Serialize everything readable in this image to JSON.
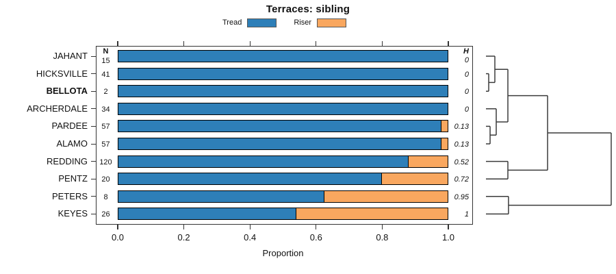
{
  "chart_data": {
    "type": "bar",
    "stacked": true,
    "orientation": "horizontal",
    "title": "Terraces: sibling",
    "xlabel": "Proportion",
    "xlim": [
      0,
      1
    ],
    "xticks": [
      "0.0",
      "0.2",
      "0.4",
      "0.6",
      "0.8",
      "1.0"
    ],
    "n_column_header": "N",
    "h_column_header": "H",
    "legend": {
      "position": "top",
      "items": [
        {
          "label": "Tread",
          "series": "tread"
        },
        {
          "label": "Riser",
          "series": "riser"
        }
      ]
    },
    "colors": {
      "tread": "#2E7FB8",
      "riser": "#F9A75F",
      "bar_border": "#000000",
      "axis": "#333333",
      "dendrogram_line": "#3a3a3a"
    },
    "rows": [
      {
        "label": "JAHANT",
        "bold": false,
        "n": "15",
        "tread": 1.0,
        "riser": 0.0,
        "h": "0"
      },
      {
        "label": "HICKSVILLE",
        "bold": false,
        "n": "41",
        "tread": 1.0,
        "riser": 0.0,
        "h": "0"
      },
      {
        "label": "BELLOTA",
        "bold": true,
        "n": "2",
        "tread": 1.0,
        "riser": 0.0,
        "h": "0"
      },
      {
        "label": "ARCHERDALE",
        "bold": false,
        "n": "34",
        "tread": 1.0,
        "riser": 0.0,
        "h": "0"
      },
      {
        "label": "PARDEE",
        "bold": false,
        "n": "57",
        "tread": 0.98,
        "riser": 0.02,
        "h": "0.13"
      },
      {
        "label": "ALAMO",
        "bold": false,
        "n": "57",
        "tread": 0.98,
        "riser": 0.02,
        "h": "0.13"
      },
      {
        "label": "REDDING",
        "bold": false,
        "n": "120",
        "tread": 0.88,
        "riser": 0.12,
        "h": "0.52"
      },
      {
        "label": "PENTZ",
        "bold": false,
        "n": "20",
        "tread": 0.8,
        "riser": 0.2,
        "h": "0.72"
      },
      {
        "label": "PETERS",
        "bold": false,
        "n": "8",
        "tread": 0.625,
        "riser": 0.375,
        "h": "0.95"
      },
      {
        "label": "KEYES",
        "bold": false,
        "n": "26",
        "tread": 0.54,
        "riser": 0.46,
        "h": "1"
      }
    ],
    "dendrogram": {
      "leaf_order": [
        "JAHANT",
        "HICKSVILLE",
        "BELLOTA",
        "ARCHERDALE",
        "PARDEE",
        "ALAMO",
        "REDDING",
        "PENTZ",
        "PETERS",
        "KEYES"
      ],
      "merges": [
        {
          "a": "HICKSVILLE",
          "b": "BELLOTA",
          "height": 0.022
        },
        {
          "a": "JAHANT",
          "b": "#0",
          "height": 0.071
        },
        {
          "a": "PARDEE",
          "b": "ALAMO",
          "height": 0.033
        },
        {
          "a": "ARCHERDALE",
          "b": "#2",
          "height": 0.082
        },
        {
          "a": "#1",
          "b": "#3",
          "height": 0.175
        },
        {
          "a": "REDDING",
          "b": "PENTZ",
          "height": 0.175
        },
        {
          "a": "#4",
          "b": "#5",
          "height": 0.492
        },
        {
          "a": "PETERS",
          "b": "KEYES",
          "height": 0.18
        },
        {
          "a": "#6",
          "b": "#7",
          "height": 1.0
        }
      ]
    }
  }
}
